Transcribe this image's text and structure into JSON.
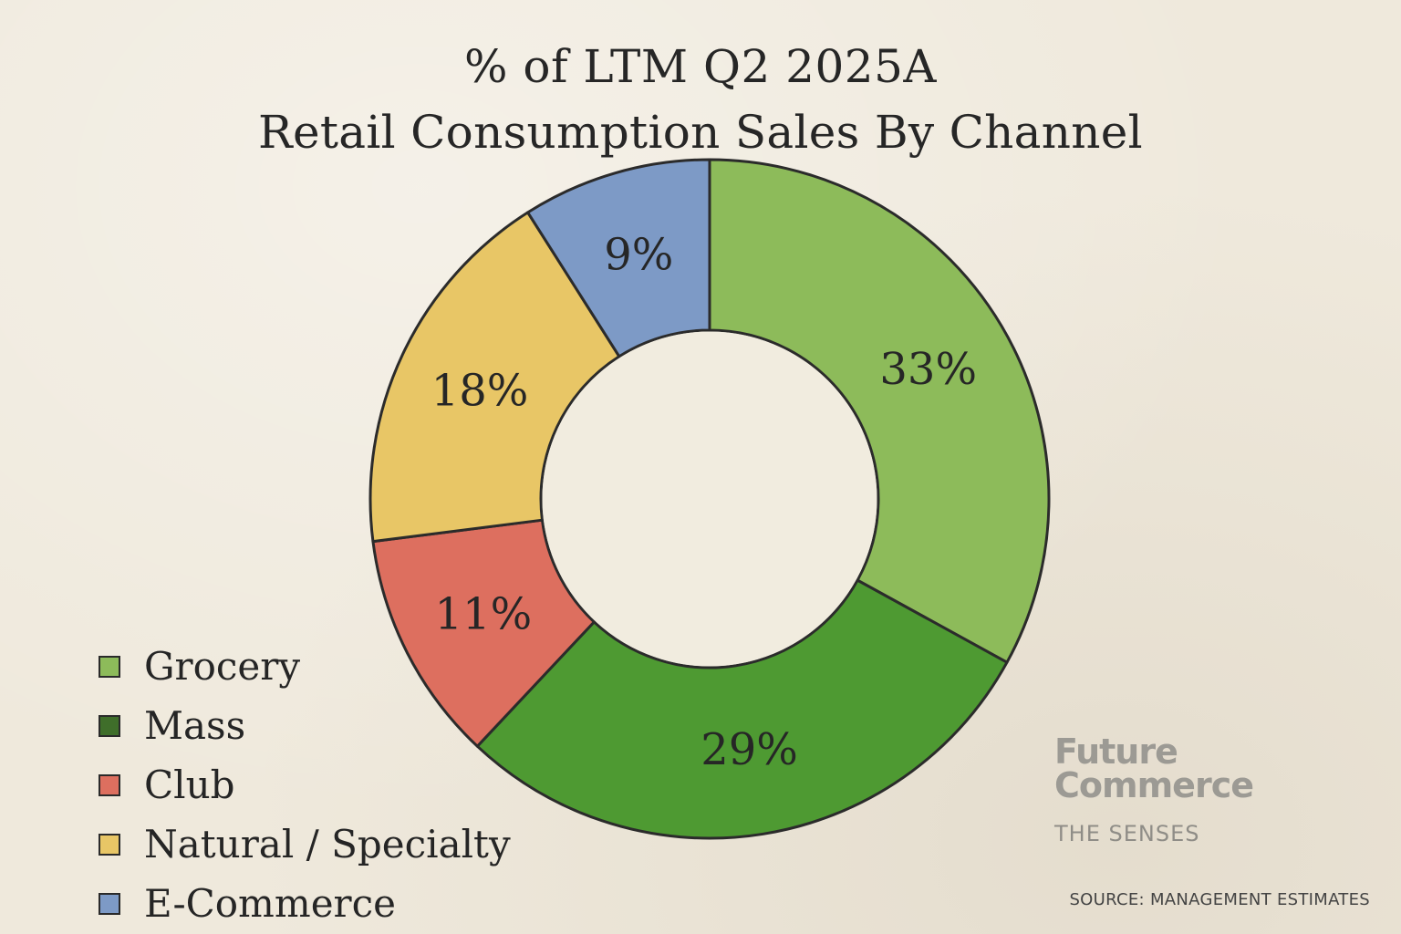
{
  "chart_data": {
    "type": "pie",
    "variant": "donut",
    "title": "% of LTM Q2 2025A",
    "subtitle": "Retail Consumption Sales By Channel",
    "categories": [
      "Grocery",
      "Mass",
      "Club",
      "Natural / Specialty",
      "E-Commerce"
    ],
    "values": [
      33,
      29,
      11,
      18,
      9
    ],
    "labels": [
      "33%",
      "29%",
      "11%",
      "18%",
      "9%"
    ],
    "colors": [
      "#8dbb5a",
      "#4e9a32",
      "#dd6f5f",
      "#e8c666",
      "#7d9ac6"
    ],
    "legend_position": "bottom-left",
    "unit": "%"
  },
  "legend": {
    "items": [
      {
        "label": "Grocery",
        "color": "#8dbb5a"
      },
      {
        "label": "Mass",
        "color": "#3f6e2a"
      },
      {
        "label": "Club",
        "color": "#dd6f5f"
      },
      {
        "label": "Natural / Specialty",
        "color": "#e8c666"
      },
      {
        "label": "E-Commerce",
        "color": "#7d9ac6"
      }
    ]
  },
  "brand": {
    "line1": "Future",
    "line2": "Commerce",
    "tagline": "THE SENSES"
  },
  "source": "SOURCE: MANAGEMENT ESTIMATES"
}
